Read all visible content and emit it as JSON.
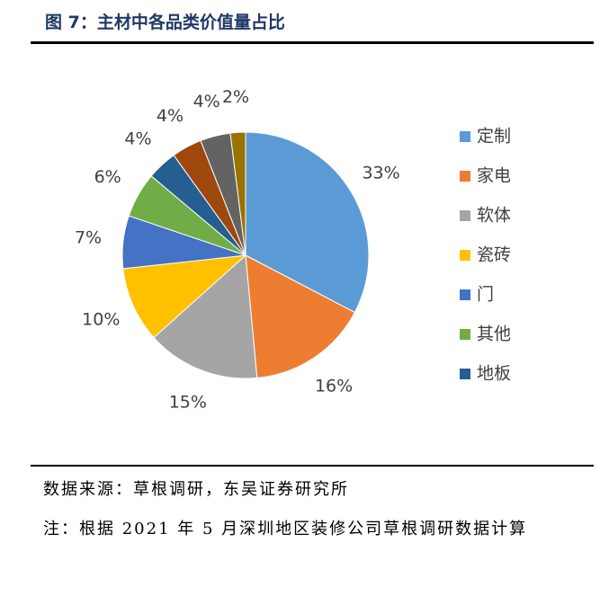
{
  "chart_data": {
    "type": "pie",
    "title": "图 7：主材中各品类价值量占比",
    "categories": [
      "定制",
      "家电",
      "软体",
      "瓷砖",
      "门",
      "其他",
      "地板",
      null,
      null,
      null
    ],
    "values": [
      33,
      16,
      15,
      10,
      7,
      6,
      4,
      4,
      4,
      2
    ],
    "value_labels": [
      "33%",
      "16%",
      "15%",
      "10%",
      "7%",
      "6%",
      "4%",
      "4%",
      "4%",
      "2%"
    ],
    "colors": [
      "#5b9bd5",
      "#ed7d31",
      "#a5a5a5",
      "#ffc000",
      "#4472c4",
      "#70ad47",
      "#255e91",
      "#9e480e",
      "#636363",
      "#997300"
    ],
    "legend": "right"
  },
  "notes": {
    "source": "数据来源：草根调研，东吴证券研究所",
    "note": "注：根据 2021 年 5 月深圳地区装修公司草根调研数据计算"
  }
}
